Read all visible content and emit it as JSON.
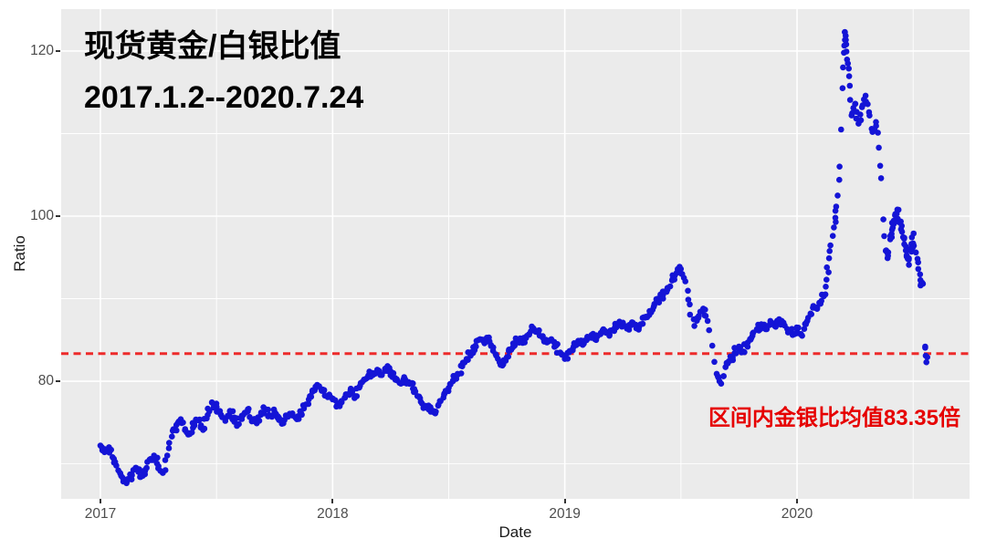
{
  "chart_data": {
    "type": "scatter",
    "title_line1": "现货黄金/白银比值",
    "title_line2": "2017.1.2--2020.7.24",
    "xlabel": "Date",
    "ylabel": "Ratio",
    "x_ticks": [
      "2017",
      "2018",
      "2019",
      "2020"
    ],
    "x_tick_years": [
      2017,
      2018,
      2019,
      2020
    ],
    "x_minor_years": [
      2017.5,
      2018.5,
      2019.5,
      2020.5
    ],
    "y_ticks": [
      "80",
      "100",
      "120"
    ],
    "y_tick_values": [
      80,
      100,
      120
    ],
    "y_minor_values": [
      70,
      90,
      110
    ],
    "x_range_years": [
      2016.831,
      2020.743
    ],
    "y_range": [
      65.75,
      125.08
    ],
    "grid": "white major+minor on gray panel",
    "legend": "none",
    "point_color": "#1414d6",
    "panel_bg": "#ebebeb",
    "mean_line": {
      "value": 83.35,
      "color": "#ed2b2b",
      "style": "dashed",
      "label": "区间内金银比均值83.35倍"
    },
    "series": [
      {
        "name": "现货黄金/白银比值 (daily)",
        "points": [
          [
            2017.0,
            72.2
          ],
          [
            2017.019,
            71.6
          ],
          [
            2017.038,
            71.9
          ],
          [
            2017.058,
            70.6
          ],
          [
            2017.077,
            69.2
          ],
          [
            2017.096,
            68.3
          ],
          [
            2017.115,
            67.9
          ],
          [
            2017.135,
            68.7
          ],
          [
            2017.154,
            69.5
          ],
          [
            2017.173,
            68.4
          ],
          [
            2017.192,
            69.1
          ],
          [
            2017.212,
            70.5
          ],
          [
            2017.231,
            71.0
          ],
          [
            2017.25,
            69.7
          ],
          [
            2017.269,
            68.9
          ],
          [
            2017.288,
            71.0
          ],
          [
            2017.308,
            73.3
          ],
          [
            2017.327,
            74.7
          ],
          [
            2017.346,
            75.4
          ],
          [
            2017.365,
            74.2
          ],
          [
            2017.385,
            73.6
          ],
          [
            2017.404,
            74.9
          ],
          [
            2017.423,
            75.3
          ],
          [
            2017.442,
            74.1
          ],
          [
            2017.462,
            75.9
          ],
          [
            2017.481,
            77.4
          ],
          [
            2017.5,
            76.9
          ],
          [
            2017.519,
            75.9
          ],
          [
            2017.538,
            75.2
          ],
          [
            2017.558,
            76.4
          ],
          [
            2017.577,
            75.6
          ],
          [
            2017.596,
            74.8
          ],
          [
            2017.615,
            75.9
          ],
          [
            2017.635,
            76.6
          ],
          [
            2017.654,
            75.2
          ],
          [
            2017.673,
            74.9
          ],
          [
            2017.692,
            76.2
          ],
          [
            2017.712,
            76.6
          ],
          [
            2017.731,
            75.8
          ],
          [
            2017.75,
            76.3
          ],
          [
            2017.769,
            75.3
          ],
          [
            2017.788,
            74.9
          ],
          [
            2017.808,
            75.7
          ],
          [
            2017.827,
            76.1
          ],
          [
            2017.846,
            75.4
          ],
          [
            2017.865,
            76.1
          ],
          [
            2017.885,
            77.2
          ],
          [
            2017.904,
            78.2
          ],
          [
            2017.923,
            78.9
          ],
          [
            2017.942,
            79.4
          ],
          [
            2017.962,
            78.8
          ],
          [
            2017.981,
            78.2
          ],
          [
            2018.0,
            77.8
          ],
          [
            2018.019,
            77.1
          ],
          [
            2018.038,
            77.6
          ],
          [
            2018.058,
            78.4
          ],
          [
            2018.077,
            78.9
          ],
          [
            2018.096,
            78.2
          ],
          [
            2018.115,
            79.3
          ],
          [
            2018.135,
            80.2
          ],
          [
            2018.154,
            80.7
          ],
          [
            2018.173,
            81.0
          ],
          [
            2018.192,
            81.4
          ],
          [
            2018.212,
            80.8
          ],
          [
            2018.231,
            81.6
          ],
          [
            2018.25,
            81.2
          ],
          [
            2018.269,
            80.4
          ],
          [
            2018.288,
            79.8
          ],
          [
            2018.308,
            80.5
          ],
          [
            2018.327,
            79.9
          ],
          [
            2018.346,
            79.1
          ],
          [
            2018.365,
            78.2
          ],
          [
            2018.385,
            77.3
          ],
          [
            2018.404,
            76.8
          ],
          [
            2018.423,
            76.3
          ],
          [
            2018.442,
            76.1
          ],
          [
            2018.462,
            77.6
          ],
          [
            2018.481,
            78.5
          ],
          [
            2018.5,
            79.2
          ],
          [
            2018.519,
            80.1
          ],
          [
            2018.538,
            80.9
          ],
          [
            2018.558,
            81.8
          ],
          [
            2018.577,
            82.7
          ],
          [
            2018.596,
            83.5
          ],
          [
            2018.615,
            84.3
          ],
          [
            2018.635,
            85.1
          ],
          [
            2018.654,
            84.6
          ],
          [
            2018.673,
            85.3
          ],
          [
            2018.692,
            84.1
          ],
          [
            2018.712,
            82.7
          ],
          [
            2018.731,
            81.9
          ],
          [
            2018.75,
            82.9
          ],
          [
            2018.769,
            83.8
          ],
          [
            2018.788,
            84.7
          ],
          [
            2018.808,
            85.2
          ],
          [
            2018.827,
            84.7
          ],
          [
            2018.846,
            85.7
          ],
          [
            2018.865,
            86.4
          ],
          [
            2018.885,
            85.9
          ],
          [
            2018.904,
            85.3
          ],
          [
            2018.923,
            84.7
          ],
          [
            2018.942,
            85.1
          ],
          [
            2018.962,
            84.3
          ],
          [
            2018.981,
            83.4
          ],
          [
            2019.0,
            82.7
          ],
          [
            2019.019,
            83.5
          ],
          [
            2019.038,
            84.2
          ],
          [
            2019.058,
            84.9
          ],
          [
            2019.077,
            84.4
          ],
          [
            2019.096,
            85.1
          ],
          [
            2019.115,
            85.6
          ],
          [
            2019.135,
            85.0
          ],
          [
            2019.154,
            85.7
          ],
          [
            2019.173,
            86.1
          ],
          [
            2019.192,
            85.5
          ],
          [
            2019.212,
            86.3
          ],
          [
            2019.231,
            86.9
          ],
          [
            2019.25,
            87.1
          ],
          [
            2019.269,
            86.5
          ],
          [
            2019.288,
            87.0
          ],
          [
            2019.308,
            86.4
          ],
          [
            2019.327,
            86.9
          ],
          [
            2019.346,
            87.7
          ],
          [
            2019.365,
            88.5
          ],
          [
            2019.385,
            89.2
          ],
          [
            2019.404,
            89.8
          ],
          [
            2019.423,
            90.5
          ],
          [
            2019.442,
            91.3
          ],
          [
            2019.462,
            92.2
          ],
          [
            2019.481,
            93.1
          ],
          [
            2019.5,
            93.6
          ],
          [
            2019.519,
            92.1
          ],
          [
            2019.538,
            89.3
          ],
          [
            2019.558,
            86.7
          ],
          [
            2019.577,
            87.9
          ],
          [
            2019.596,
            88.8
          ],
          [
            2019.615,
            87.3
          ],
          [
            2019.635,
            84.3
          ],
          [
            2019.654,
            80.9
          ],
          [
            2019.673,
            79.7
          ],
          [
            2019.692,
            81.7
          ],
          [
            2019.712,
            82.5
          ],
          [
            2019.731,
            83.4
          ],
          [
            2019.75,
            84.2
          ],
          [
            2019.769,
            83.6
          ],
          [
            2019.788,
            84.7
          ],
          [
            2019.808,
            85.5
          ],
          [
            2019.827,
            86.3
          ],
          [
            2019.846,
            86.9
          ],
          [
            2019.865,
            86.3
          ],
          [
            2019.885,
            87.3
          ],
          [
            2019.904,
            86.7
          ],
          [
            2019.923,
            87.5
          ],
          [
            2019.942,
            86.9
          ],
          [
            2019.962,
            86.2
          ],
          [
            2019.981,
            85.6
          ],
          [
            2020.0,
            86.3
          ],
          [
            2020.019,
            85.6
          ],
          [
            2020.038,
            86.9
          ],
          [
            2020.058,
            88.2
          ],
          [
            2020.077,
            88.9
          ],
          [
            2020.096,
            89.5
          ],
          [
            2020.115,
            90.3
          ],
          [
            2020.127,
            92.3
          ],
          [
            2020.138,
            94.9
          ],
          [
            2020.154,
            97.6
          ],
          [
            2020.165,
            99.8
          ],
          [
            2020.175,
            102.5
          ],
          [
            2020.183,
            106.0
          ],
          [
            2020.19,
            110.5
          ],
          [
            2020.196,
            115.5
          ],
          [
            2020.202,
            119.8
          ],
          [
            2020.206,
            122.3
          ],
          [
            2020.212,
            120.8
          ],
          [
            2020.219,
            118.5
          ],
          [
            2020.227,
            115.8
          ],
          [
            2020.235,
            112.2
          ],
          [
            2020.25,
            113.6
          ],
          [
            2020.265,
            111.2
          ],
          [
            2020.28,
            113.2
          ],
          [
            2020.295,
            114.6
          ],
          [
            2020.31,
            112.6
          ],
          [
            2020.325,
            110.2
          ],
          [
            2020.34,
            111.4
          ],
          [
            2020.352,
            108.3
          ],
          [
            2020.362,
            104.6
          ],
          [
            2020.372,
            99.6
          ],
          [
            2020.382,
            95.8
          ],
          [
            2020.392,
            95.2
          ],
          [
            2020.402,
            97.6
          ],
          [
            2020.412,
            98.6
          ],
          [
            2020.422,
            100.1
          ],
          [
            2020.432,
            100.8
          ],
          [
            2020.442,
            99.3
          ],
          [
            2020.452,
            98.1
          ],
          [
            2020.462,
            96.6
          ],
          [
            2020.472,
            95.1
          ],
          [
            2020.482,
            94.1
          ],
          [
            2020.492,
            96.1
          ],
          [
            2020.502,
            97.9
          ],
          [
            2020.512,
            95.6
          ],
          [
            2020.522,
            93.6
          ],
          [
            2020.532,
            91.6
          ],
          [
            2020.542,
            91.8
          ],
          [
            2020.552,
            84.2
          ],
          [
            2020.557,
            82.3
          ]
        ]
      }
    ]
  }
}
